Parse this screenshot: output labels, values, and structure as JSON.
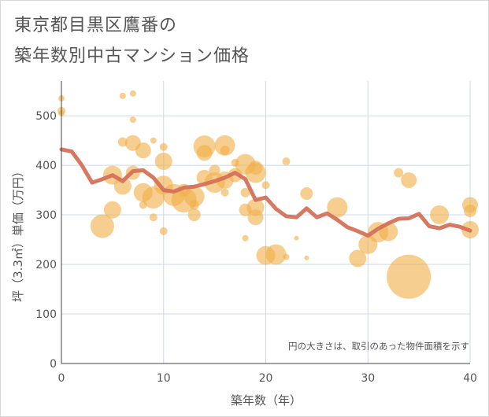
{
  "title_lines": [
    "東京都目黒区鷹番の",
    "築年数別中古マンション価格"
  ],
  "chart_data": {
    "type": "scatter",
    "xlabel": "築年数（年）",
    "ylabel": "坪（3.3㎡）単価（万円）",
    "xlim": [
      0,
      40
    ],
    "ylim": [
      0,
      570
    ],
    "xticks": [
      0,
      10,
      20,
      30,
      40
    ],
    "yticks": [
      0,
      100,
      200,
      300,
      400,
      500
    ],
    "grid": true,
    "annotation": "円の大きさは、取引のあった物件面積を示す",
    "colors": {
      "bubble": "#f0b04a",
      "line": "#d4715a",
      "grid": "#c8d9ea",
      "axis": "#444444"
    },
    "bubbles": [
      {
        "x": 0,
        "y": 535,
        "r": 4
      },
      {
        "x": 0,
        "y": 510,
        "r": 5
      },
      {
        "x": 0,
        "y": 505,
        "r": 4
      },
      {
        "x": 6,
        "y": 540,
        "r": 4
      },
      {
        "x": 7,
        "y": 545,
        "r": 4
      },
      {
        "x": 7,
        "y": 492,
        "r": 4
      },
      {
        "x": 6,
        "y": 447,
        "r": 6
      },
      {
        "x": 7,
        "y": 445,
        "r": 10
      },
      {
        "x": 8,
        "y": 430,
        "r": 10
      },
      {
        "x": 9,
        "y": 450,
        "r": 4
      },
      {
        "x": 10,
        "y": 437,
        "r": 5
      },
      {
        "x": 10,
        "y": 408,
        "r": 11
      },
      {
        "x": 5,
        "y": 380,
        "r": 12
      },
      {
        "x": 6,
        "y": 358,
        "r": 11
      },
      {
        "x": 7,
        "y": 385,
        "r": 9
      },
      {
        "x": 8,
        "y": 345,
        "r": 12
      },
      {
        "x": 8,
        "y": 320,
        "r": 5
      },
      {
        "x": 9,
        "y": 335,
        "r": 14
      },
      {
        "x": 9,
        "y": 295,
        "r": 5
      },
      {
        "x": 10,
        "y": 360,
        "r": 12
      },
      {
        "x": 10,
        "y": 267,
        "r": 5
      },
      {
        "x": 5,
        "y": 310,
        "r": 11
      },
      {
        "x": 4,
        "y": 277,
        "r": 15
      },
      {
        "x": 11,
        "y": 340,
        "r": 14
      },
      {
        "x": 12,
        "y": 330,
        "r": 16
      },
      {
        "x": 12,
        "y": 350,
        "r": 8
      },
      {
        "x": 13,
        "y": 337,
        "r": 13
      },
      {
        "x": 13,
        "y": 300,
        "r": 8
      },
      {
        "x": 13,
        "y": 320,
        "r": 6
      },
      {
        "x": 14,
        "y": 438,
        "r": 14
      },
      {
        "x": 14,
        "y": 425,
        "r": 10
      },
      {
        "x": 14,
        "y": 375,
        "r": 10
      },
      {
        "x": 15,
        "y": 365,
        "r": 13
      },
      {
        "x": 15,
        "y": 390,
        "r": 7
      },
      {
        "x": 16,
        "y": 440,
        "r": 13
      },
      {
        "x": 16,
        "y": 430,
        "r": 6
      },
      {
        "x": 16,
        "y": 370,
        "r": 11
      },
      {
        "x": 16,
        "y": 345,
        "r": 5
      },
      {
        "x": 17,
        "y": 405,
        "r": 5
      },
      {
        "x": 17,
        "y": 380,
        "r": 9
      },
      {
        "x": 18,
        "y": 402,
        "r": 13
      },
      {
        "x": 18,
        "y": 345,
        "r": 6
      },
      {
        "x": 18,
        "y": 310,
        "r": 8
      },
      {
        "x": 19,
        "y": 385,
        "r": 13
      },
      {
        "x": 19,
        "y": 395,
        "r": 9
      },
      {
        "x": 19,
        "y": 315,
        "r": 11
      },
      {
        "x": 19,
        "y": 295,
        "r": 10
      },
      {
        "x": 18,
        "y": 253,
        "r": 4
      },
      {
        "x": 20,
        "y": 360,
        "r": 5
      },
      {
        "x": 20,
        "y": 218,
        "r": 12
      },
      {
        "x": 21,
        "y": 220,
        "r": 13
      },
      {
        "x": 22,
        "y": 408,
        "r": 5
      },
      {
        "x": 22,
        "y": 215,
        "r": 4
      },
      {
        "x": 23,
        "y": 253,
        "r": 3
      },
      {
        "x": 24,
        "y": 343,
        "r": 8
      },
      {
        "x": 24,
        "y": 213,
        "r": 3
      },
      {
        "x": 27,
        "y": 315,
        "r": 13
      },
      {
        "x": 29,
        "y": 212,
        "r": 11
      },
      {
        "x": 30,
        "y": 240,
        "r": 12
      },
      {
        "x": 31,
        "y": 265,
        "r": 13
      },
      {
        "x": 32,
        "y": 266,
        "r": 12
      },
      {
        "x": 33,
        "y": 385,
        "r": 6
      },
      {
        "x": 34,
        "y": 370,
        "r": 10
      },
      {
        "x": 34,
        "y": 175,
        "r": 28
      },
      {
        "x": 37,
        "y": 300,
        "r": 12
      },
      {
        "x": 40,
        "y": 320,
        "r": 10
      },
      {
        "x": 40,
        "y": 308,
        "r": 8
      },
      {
        "x": 40,
        "y": 270,
        "r": 11
      }
    ],
    "series": [
      {
        "x": [
          0,
          1,
          2,
          3,
          4,
          5,
          6,
          7,
          8,
          9,
          10,
          11,
          12,
          13,
          14,
          15,
          16,
          17,
          18,
          19,
          20,
          21,
          22,
          23,
          24,
          25,
          26,
          27,
          28,
          29,
          30,
          31,
          32,
          33,
          34,
          35,
          36,
          37,
          38,
          39,
          40
        ],
        "values": [
          432,
          428,
          400,
          365,
          372,
          380,
          368,
          388,
          390,
          375,
          350,
          347,
          355,
          357,
          362,
          368,
          375,
          385,
          372,
          330,
          335,
          312,
          297,
          295,
          313,
          295,
          303,
          290,
          275,
          267,
          258,
          272,
          283,
          292,
          293,
          302,
          277,
          273,
          280,
          276,
          268
        ]
      }
    ]
  }
}
